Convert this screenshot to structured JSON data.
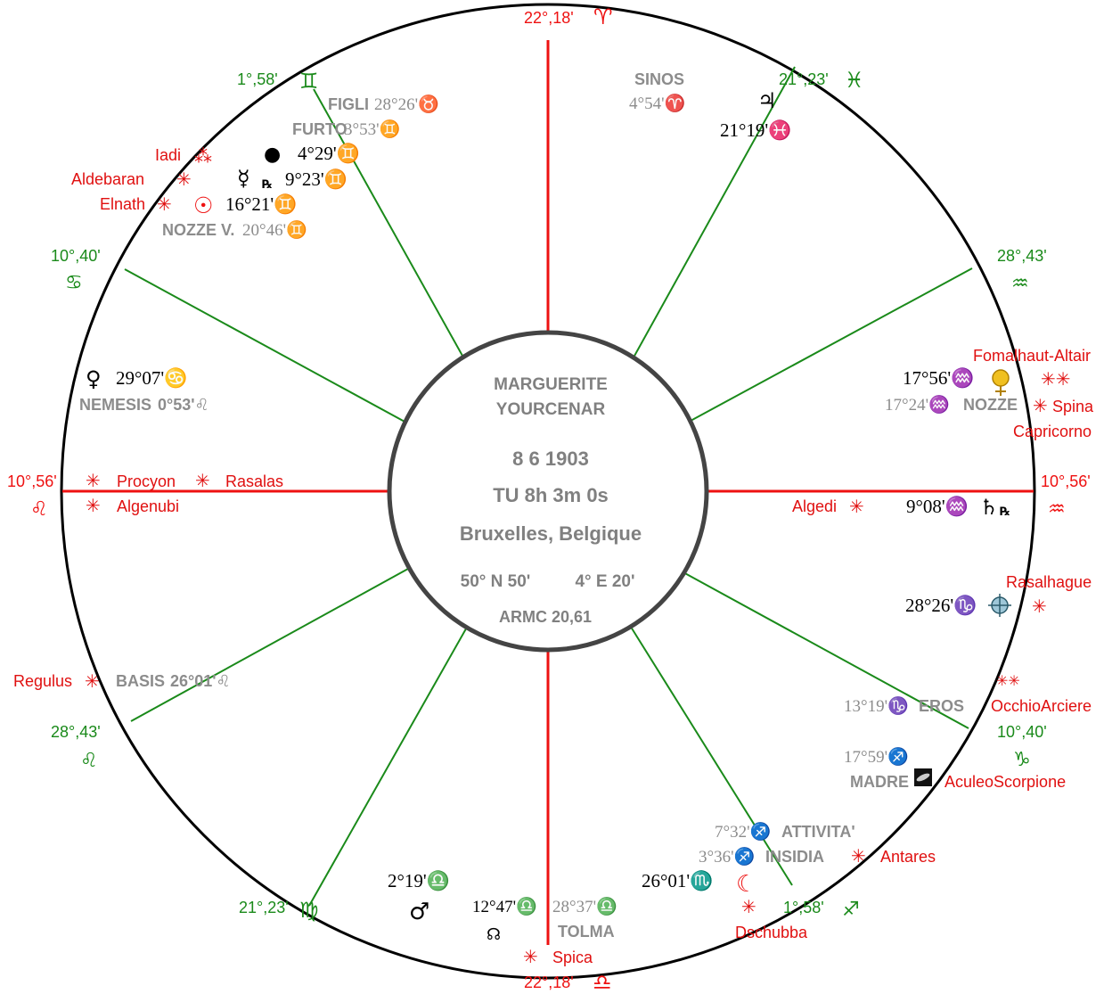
{
  "colors": {
    "ring": "#000000",
    "cusp_green": "#1a8a1a",
    "axis_red": "#ee1111",
    "star_red": "#e01010",
    "planet_black": "#000000",
    "part_gray": "#8c8c8c",
    "center_text": "#808080",
    "center_ring": "#444444"
  },
  "center": {
    "name_line1": "MARGUERITE",
    "name_line2": "YOURCENAR",
    "date": "8  6  1903",
    "time": "TU   8h 3m 0s",
    "place": "Bruxelles, Belgique",
    "lat": "50° N  50'",
    "lon": "4° E  20'",
    "armc": "ARMC 20,61"
  },
  "cusps": [
    {
      "id": "mc",
      "degree": "22°,18'",
      "sign_glyph": "♈",
      "sign": "aries",
      "kind": "axis"
    },
    {
      "id": "h11",
      "degree": "21°,23'",
      "sign_glyph": "♓",
      "sign": "pisces",
      "kind": "house"
    },
    {
      "id": "h12",
      "degree": "28°,43'",
      "sign_glyph": "♒",
      "sign": "aquarius",
      "kind": "house"
    },
    {
      "id": "asc",
      "degree": "10°,56'",
      "sign_glyph": "♒",
      "sign": "aquarius",
      "kind": "axis"
    },
    {
      "id": "h2",
      "degree": "10°,40'",
      "sign_glyph": "♑",
      "sign": "capricorn",
      "kind": "house"
    },
    {
      "id": "h3",
      "degree": "1°,58'",
      "sign_glyph": "♐",
      "sign": "sagittarius",
      "kind": "house"
    },
    {
      "id": "ic",
      "degree": "22°,18'",
      "sign_glyph": "♎",
      "sign": "libra",
      "kind": "axis"
    },
    {
      "id": "h5",
      "degree": "21°,23'",
      "sign_glyph": "♍",
      "sign": "virgo",
      "kind": "house"
    },
    {
      "id": "h6",
      "degree": "28°,43'",
      "sign_glyph": "♌",
      "sign": "leo",
      "kind": "house"
    },
    {
      "id": "dsc",
      "degree": "10°,56'",
      "sign_glyph": "♌",
      "sign": "leo",
      "kind": "axis"
    },
    {
      "id": "h8",
      "degree": "10°,40'",
      "sign_glyph": "♋",
      "sign": "cancer",
      "kind": "house"
    },
    {
      "id": "h9",
      "degree": "1°,58'",
      "sign_glyph": "♊",
      "sign": "gemini",
      "kind": "house"
    }
  ],
  "planets": [
    {
      "id": "jupiter",
      "glyph": "♃",
      "position": "21°19'♓"
    },
    {
      "id": "black-moon",
      "glyph": "●",
      "position": "4°29'♊"
    },
    {
      "id": "mercury",
      "glyph": "☿",
      "retro": "℞",
      "position": "9°23'♊"
    },
    {
      "id": "sun",
      "glyph": "☉",
      "position": "16°21'♊"
    },
    {
      "id": "venus",
      "glyph": "♀",
      "position": "29°07'♋"
    },
    {
      "id": "uranus",
      "glyph": "♅",
      "position": "17°56'♒"
    },
    {
      "id": "saturn",
      "glyph": "♄",
      "retro": "℞",
      "position": "9°08'♒"
    },
    {
      "id": "neptune-target",
      "glyph": "⊕",
      "position": "28°26'♑"
    },
    {
      "id": "mars",
      "glyph": "♂",
      "position": "2°19'♎"
    },
    {
      "id": "node",
      "glyph": "☊",
      "position": "12°47'♎"
    },
    {
      "id": "moon",
      "glyph": "☾",
      "position": "26°01'♏"
    },
    {
      "id": "galaxy",
      "glyph": "■",
      "position": ""
    }
  ],
  "parts": [
    {
      "id": "figli",
      "name": "FIGLI",
      "position": "28°26'♉"
    },
    {
      "id": "furto",
      "name": "FURTO",
      "position": "3°53'♊"
    },
    {
      "id": "nozze-v",
      "name": "NOZZE V.",
      "position": "20°46'♊"
    },
    {
      "id": "sinos",
      "name": "SINOS",
      "position": "4°54'♈"
    },
    {
      "id": "nemesis",
      "name": "NEMESIS",
      "position": "0°53'♌"
    },
    {
      "id": "nozze",
      "name": "NOZZE",
      "position": "17°24'♒"
    },
    {
      "id": "basis",
      "name": "BASIS",
      "position": "26°01'♌"
    },
    {
      "id": "eros",
      "name": "EROS",
      "position": "13°19'♑"
    },
    {
      "id": "madre",
      "name": "MADRE",
      "position": "17°59'♐"
    },
    {
      "id": "attivita",
      "name": "ATTIVITA'",
      "position": "7°32'♐"
    },
    {
      "id": "insidia",
      "name": "INSIDIA",
      "position": "3°36'♐"
    },
    {
      "id": "tolma",
      "name": "TOLMA",
      "position": "28°37'♎"
    }
  ],
  "stars": [
    {
      "id": "iadi",
      "name": "Iadi",
      "glyph": "⁂"
    },
    {
      "id": "aldebaran",
      "name": "Aldebaran",
      "glyph": "✳"
    },
    {
      "id": "elnath",
      "name": "Elnath",
      "glyph": "✳"
    },
    {
      "id": "procyon",
      "name": "Procyon",
      "glyph": "✳"
    },
    {
      "id": "rasalas",
      "name": "Rasalas",
      "glyph": "✳"
    },
    {
      "id": "algenubi",
      "name": "Algenubi",
      "glyph": "✳"
    },
    {
      "id": "regulus",
      "name": "Regulus",
      "glyph": "✳"
    },
    {
      "id": "fomalhaut-altair",
      "name": "Fomalhaut-Altair",
      "glyph": "✳✳"
    },
    {
      "id": "spina-capricorno-1",
      "name": "Spina",
      "glyph": "✳"
    },
    {
      "id": "spina-capricorno-2",
      "name": "Capricorno",
      "glyph": ""
    },
    {
      "id": "algedi",
      "name": "Algedi",
      "glyph": "✳"
    },
    {
      "id": "rasalhague",
      "name": "Rasalhague",
      "glyph": "✳"
    },
    {
      "id": "occhioarciere",
      "name": "OcchioArciere",
      "glyph": "✳✳"
    },
    {
      "id": "aculeoscorpione",
      "name": "AculeoScorpione",
      "glyph": ""
    },
    {
      "id": "antares",
      "name": "Antares",
      "glyph": "✳"
    },
    {
      "id": "dschubba",
      "name": "Dschubba",
      "glyph": "✳"
    },
    {
      "id": "spica",
      "name": "Spica",
      "glyph": "✳"
    }
  ]
}
